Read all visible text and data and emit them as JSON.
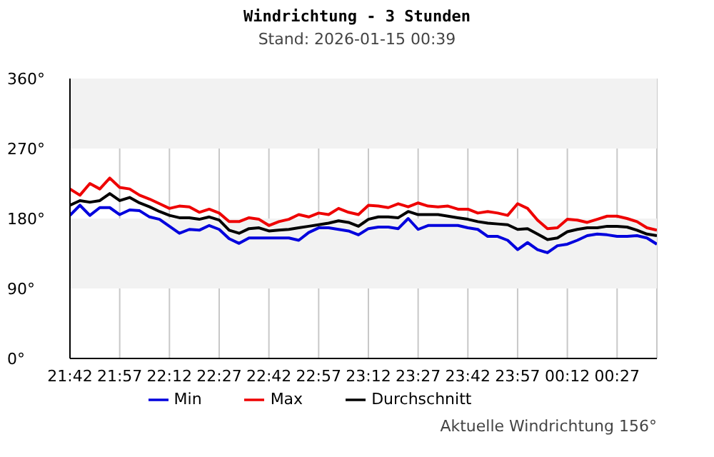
{
  "chart_data": {
    "type": "line",
    "title": "Windrichtung - 3 Stunden",
    "subtitle": "Stand: 2026-01-15 00:39",
    "annotations": [
      "Aktuelle Windrichtung 156°"
    ],
    "x": [
      "2026-01-14T21:42",
      "2026-01-14T21:45",
      "2026-01-14T21:48",
      "2026-01-14T21:51",
      "2026-01-14T21:54",
      "2026-01-14T21:57",
      "2026-01-14T22:00",
      "2026-01-14T22:03",
      "2026-01-14T22:06",
      "2026-01-14T22:09",
      "2026-01-14T22:12",
      "2026-01-14T22:15",
      "2026-01-14T22:18",
      "2026-01-14T22:21",
      "2026-01-14T22:24",
      "2026-01-14T22:27",
      "2026-01-14T22:30",
      "2026-01-14T22:33",
      "2026-01-14T22:36",
      "2026-01-14T22:39",
      "2026-01-14T22:42",
      "2026-01-14T22:45",
      "2026-01-14T22:48",
      "2026-01-14T22:51",
      "2026-01-14T22:54",
      "2026-01-14T22:57",
      "2026-01-14T23:00",
      "2026-01-14T23:03",
      "2026-01-14T23:06",
      "2026-01-14T23:09",
      "2026-01-14T23:12",
      "2026-01-14T23:15",
      "2026-01-14T23:18",
      "2026-01-14T23:21",
      "2026-01-14T23:24",
      "2026-01-14T23:27",
      "2026-01-14T23:30",
      "2026-01-14T23:33",
      "2026-01-14T23:36",
      "2026-01-14T23:39",
      "2026-01-14T23:42",
      "2026-01-14T23:45",
      "2026-01-14T23:48",
      "2026-01-14T23:51",
      "2026-01-14T23:54",
      "2026-01-14T23:57",
      "2026-01-15T00:00",
      "2026-01-15T00:03",
      "2026-01-15T00:06",
      "2026-01-15T00:09",
      "2026-01-15T00:12",
      "2026-01-15T00:15",
      "2026-01-15T00:18",
      "2026-01-15T00:21",
      "2026-01-15T00:24",
      "2026-01-15T00:27",
      "2026-01-15T00:30",
      "2026-01-15T00:33",
      "2026-01-15T00:36",
      "2026-01-15T00:39"
    ],
    "series": [
      {
        "name": "Min",
        "color": "#0000dd",
        "values": [
          184,
          197,
          184,
          194,
          194,
          185,
          191,
          190,
          182,
          179,
          170,
          161,
          166,
          165,
          171,
          166,
          154,
          148,
          155,
          155,
          155,
          155,
          155,
          152,
          162,
          168,
          168,
          166,
          164,
          159,
          167,
          169,
          169,
          167,
          180,
          166,
          171,
          171,
          171,
          171,
          168,
          166,
          157,
          157,
          152,
          140,
          149,
          140,
          136,
          145,
          147,
          152,
          158,
          160,
          159,
          157,
          157,
          158,
          155,
          147
        ]
      },
      {
        "name": "Max",
        "color": "#ee0000",
        "values": [
          218,
          210,
          225,
          218,
          232,
          220,
          218,
          210,
          205,
          199,
          193,
          196,
          195,
          188,
          192,
          187,
          176,
          176,
          181,
          179,
          171,
          176,
          179,
          185,
          182,
          187,
          185,
          193,
          188,
          185,
          197,
          196,
          194,
          199,
          195,
          200,
          196,
          195,
          196,
          192,
          192,
          187,
          189,
          187,
          184,
          199,
          193,
          178,
          167,
          168,
          179,
          178,
          175,
          179,
          183,
          183,
          180,
          176,
          168,
          165
        ]
      },
      {
        "name": "Durchschnitt",
        "color": "#000000",
        "values": [
          197,
          203,
          201,
          203,
          212,
          203,
          207,
          200,
          195,
          189,
          184,
          181,
          181,
          179,
          182,
          178,
          165,
          161,
          167,
          168,
          164,
          165,
          166,
          168,
          170,
          172,
          174,
          177,
          175,
          170,
          179,
          182,
          182,
          181,
          189,
          185,
          185,
          185,
          183,
          181,
          179,
          176,
          174,
          173,
          172,
          166,
          167,
          160,
          153,
          155,
          163,
          166,
          168,
          168,
          170,
          170,
          169,
          165,
          160,
          158
        ]
      }
    ],
    "xlim": [
      "2026-01-14T21:42",
      "2026-01-15T00:39"
    ],
    "xticks": [
      {
        "value": "2026-01-14T21:42",
        "label": "21:42"
      },
      {
        "value": "2026-01-14T21:57",
        "label": "21:57"
      },
      {
        "value": "2026-01-14T22:12",
        "label": "22:12"
      },
      {
        "value": "2026-01-14T22:27",
        "label": "22:27"
      },
      {
        "value": "2026-01-14T22:42",
        "label": "22:42"
      },
      {
        "value": "2026-01-14T22:57",
        "label": "22:57"
      },
      {
        "value": "2026-01-14T23:12",
        "label": "23:12"
      },
      {
        "value": "2026-01-14T23:27",
        "label": "23:27"
      },
      {
        "value": "2026-01-14T23:42",
        "label": "23:42"
      },
      {
        "value": "2026-01-14T23:57",
        "label": "23:57"
      },
      {
        "value": "2026-01-15T00:12",
        "label": "00:12"
      },
      {
        "value": "2026-01-15T00:27",
        "label": "00:27"
      }
    ],
    "ylim": [
      0,
      360
    ],
    "yticks": [
      {
        "value": 0,
        "label": "0°"
      },
      {
        "value": 90,
        "label": "90°"
      },
      {
        "value": 180,
        "label": "180°"
      },
      {
        "value": 270,
        "label": "270°"
      },
      {
        "value": 360,
        "label": "360°"
      }
    ],
    "bands": [
      {
        "axis": "y",
        "from": 90,
        "to": 180,
        "color": "#f2f2f2"
      },
      {
        "axis": "y",
        "from": 270,
        "to": 360,
        "color": "#f2f2f2"
      }
    ],
    "grid": "x",
    "legend": "bottom",
    "marker": "none",
    "line_style": "solid"
  }
}
